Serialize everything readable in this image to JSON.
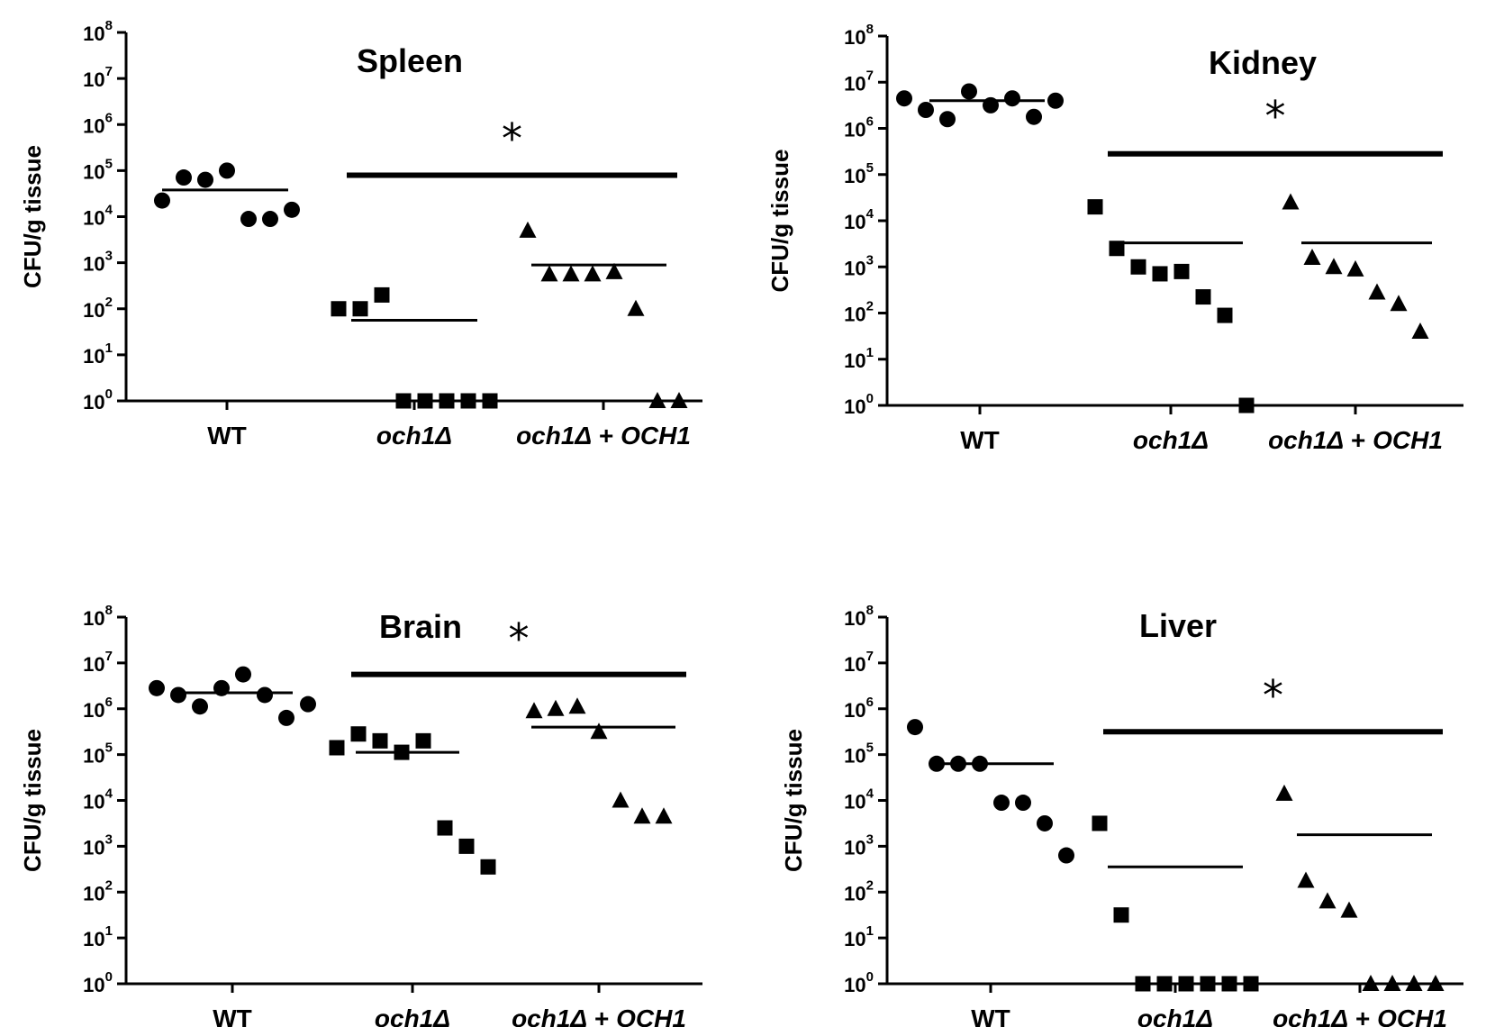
{
  "y_axis_label": "CFU/g tissue",
  "significance_marker": "*",
  "legend_markers": {
    "WT": "circle",
    "och1Δ": "square",
    "och1Δ + OCH1": "triangle"
  },
  "chart_data": [
    {
      "type": "scatter",
      "title": "Spleen",
      "ylabel": "CFU/g tissue",
      "yscale": "log10",
      "ylim": [
        1,
        100000000
      ],
      "y_ticks": [
        "10^0",
        "10^1",
        "10^2",
        "10^3",
        "10^4",
        "10^5",
        "10^6",
        "10^7",
        "10^8"
      ],
      "categories": [
        "WT",
        "och1Δ",
        "och1Δ + OCH1"
      ],
      "category_labels": [
        {
          "parts": [
            {
              "text": "WT",
              "italic": false
            }
          ]
        },
        {
          "parts": [
            {
              "text": "och1Δ",
              "italic": true
            }
          ]
        },
        {
          "parts": [
            {
              "text": "och1Δ",
              "italic": true
            },
            {
              "text": " + ",
              "italic": false
            },
            {
              "text": "OCH1",
              "italic": true
            }
          ]
        }
      ],
      "series": [
        {
          "name": "WT",
          "marker": "circle",
          "log10_values": [
            4.35,
            4.85,
            4.8,
            5.0,
            3.95,
            3.95,
            4.15
          ],
          "mean_log10": 4.58
        },
        {
          "name": "och1Δ",
          "marker": "square",
          "log10_values": [
            2.0,
            2.0,
            2.3,
            0,
            0,
            0,
            0,
            0
          ],
          "mean_log10": 1.75
        },
        {
          "name": "och1Δ + OCH1",
          "marker": "triangle",
          "log10_values": [
            3.7,
            2.75,
            2.75,
            2.75,
            2.8,
            2.0,
            0,
            0
          ],
          "mean_log10": 2.95
        }
      ],
      "significance": {
        "marker": "*",
        "from": "och1Δ",
        "to": "och1Δ + OCH1",
        "level_log10": 4.9
      }
    },
    {
      "type": "scatter",
      "title": "Kidney",
      "ylabel": "CFU/g tissue",
      "yscale": "log10",
      "ylim": [
        1,
        100000000
      ],
      "y_ticks": [
        "10^0",
        "10^1",
        "10^2",
        "10^3",
        "10^4",
        "10^5",
        "10^6",
        "10^7",
        "10^8"
      ],
      "categories": [
        "WT",
        "och1Δ",
        "och1Δ + OCH1"
      ],
      "category_labels": [
        {
          "parts": [
            {
              "text": "WT",
              "italic": false
            }
          ]
        },
        {
          "parts": [
            {
              "text": "och1Δ",
              "italic": true
            }
          ]
        },
        {
          "parts": [
            {
              "text": "och1Δ",
              "italic": true
            },
            {
              "text": " + ",
              "italic": false
            },
            {
              "text": "OCH1",
              "italic": true
            }
          ]
        }
      ],
      "series": [
        {
          "name": "WT",
          "marker": "circle",
          "log10_values": [
            6.65,
            6.4,
            6.2,
            6.8,
            6.5,
            6.65,
            6.25,
            6.6
          ],
          "mean_log10": 6.6
        },
        {
          "name": "och1Δ",
          "marker": "square",
          "log10_values": [
            4.3,
            3.4,
            3.0,
            2.85,
            2.9,
            2.35,
            1.95,
            0
          ],
          "mean_log10": 3.52
        },
        {
          "name": "och1Δ + OCH1",
          "marker": "triangle",
          "log10_values": [
            4.4,
            3.2,
            3.0,
            2.95,
            2.45,
            2.2,
            1.6
          ],
          "mean_log10": 3.52
        }
      ],
      "significance": {
        "marker": "*",
        "from": "och1Δ",
        "to": "och1Δ + OCH1",
        "level_log10": 5.45
      }
    },
    {
      "type": "scatter",
      "title": "Brain",
      "ylabel": "CFU/g tissue",
      "yscale": "log10",
      "ylim": [
        1,
        100000000
      ],
      "y_ticks": [
        "10^0",
        "10^1",
        "10^2",
        "10^3",
        "10^4",
        "10^5",
        "10^6",
        "10^7",
        "10^8"
      ],
      "categories": [
        "WT",
        "och1Δ",
        "och1Δ + OCH1"
      ],
      "category_labels": [
        {
          "parts": [
            {
              "text": "WT",
              "italic": false
            }
          ]
        },
        {
          "parts": [
            {
              "text": "och1Δ",
              "italic": true
            }
          ]
        },
        {
          "parts": [
            {
              "text": "och1Δ",
              "italic": true
            },
            {
              "text": " + ",
              "italic": false
            },
            {
              "text": "OCH1",
              "italic": true
            }
          ]
        }
      ],
      "series": [
        {
          "name": "WT",
          "marker": "circle",
          "log10_values": [
            6.45,
            6.3,
            6.05,
            6.45,
            6.75,
            6.3,
            5.8,
            6.1
          ],
          "mean_log10": 6.35
        },
        {
          "name": "och1Δ",
          "marker": "square",
          "log10_values": [
            5.15,
            5.45,
            5.3,
            5.05,
            5.3,
            3.4,
            3.0,
            2.55
          ],
          "mean_log10": 5.05
        },
        {
          "name": "och1Δ + OCH1",
          "marker": "triangle",
          "log10_values": [
            5.95,
            6.0,
            6.05,
            5.5,
            4.0,
            3.65,
            3.65
          ],
          "mean_log10": 5.6
        }
      ],
      "significance": {
        "marker": "*",
        "from": "och1Δ",
        "to": "och1Δ + OCH1",
        "level_log10": 6.75
      }
    },
    {
      "type": "scatter",
      "title": "Liver",
      "ylabel": "CFU/g tissue",
      "yscale": "log10",
      "ylim": [
        1,
        100000000
      ],
      "y_ticks": [
        "10^0",
        "10^1",
        "10^2",
        "10^3",
        "10^4",
        "10^5",
        "10^6",
        "10^7",
        "10^8"
      ],
      "categories": [
        "WT",
        "och1Δ",
        "och1Δ + OCH1"
      ],
      "category_labels": [
        {
          "parts": [
            {
              "text": "WT",
              "italic": false
            }
          ]
        },
        {
          "parts": [
            {
              "text": "och1Δ",
              "italic": true
            }
          ]
        },
        {
          "parts": [
            {
              "text": "och1Δ",
              "italic": true
            },
            {
              "text": " + ",
              "italic": false
            },
            {
              "text": "OCH1",
              "italic": true
            }
          ]
        }
      ],
      "series": [
        {
          "name": "WT",
          "marker": "circle",
          "log10_values": [
            5.6,
            4.8,
            4.8,
            4.8,
            3.95,
            3.95,
            3.5,
            2.8
          ],
          "mean_log10": 4.8
        },
        {
          "name": "och1Δ",
          "marker": "square",
          "log10_values": [
            3.5,
            1.5,
            0,
            0,
            0,
            0,
            0,
            0
          ],
          "mean_log10": 2.55
        },
        {
          "name": "och1Δ + OCH1",
          "marker": "triangle",
          "log10_values": [
            4.15,
            2.25,
            1.8,
            1.6,
            0,
            0,
            0,
            0
          ],
          "mean_log10": 3.25
        }
      ],
      "significance": {
        "marker": "*",
        "from": "och1Δ",
        "to": "och1Δ + OCH1",
        "level_log10": 5.5
      }
    }
  ]
}
